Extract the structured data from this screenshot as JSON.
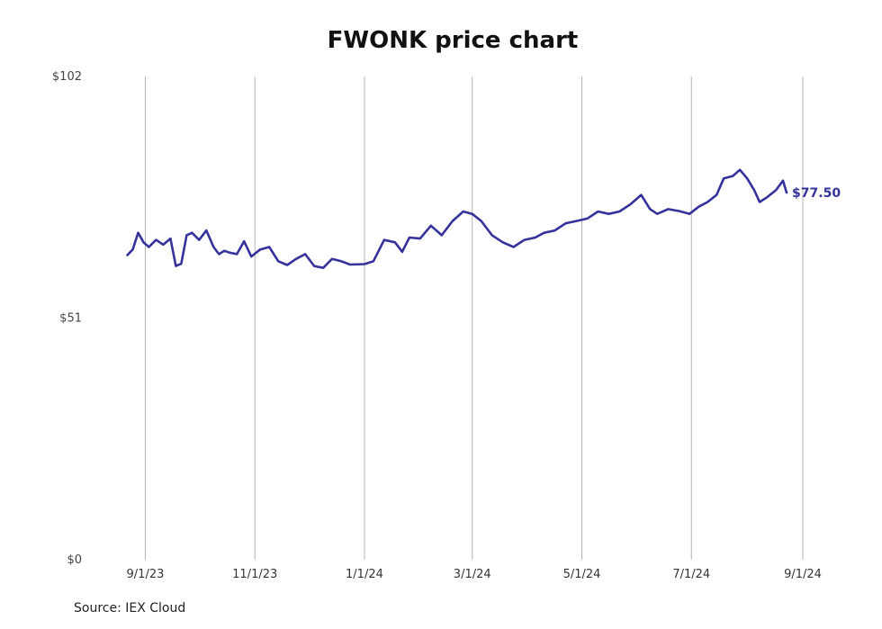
{
  "chart_data": {
    "type": "line",
    "title": "FWONK price chart",
    "source": "Source: IEX Cloud",
    "xlabel": "",
    "ylabel": "",
    "ylim": [
      0,
      102
    ],
    "yticks": [
      {
        "value": 0,
        "label": "$0"
      },
      {
        "value": 51,
        "label": "$51"
      },
      {
        "value": 102,
        "label": "$102"
      }
    ],
    "xlim": [
      "2023-08-19",
      "2024-09-01"
    ],
    "xticks": [
      {
        "date": "2023-09-01",
        "label": "9/1/23"
      },
      {
        "date": "2023-11-01",
        "label": "11/1/23"
      },
      {
        "date": "2024-01-01",
        "label": "1/1/24"
      },
      {
        "date": "2024-03-01",
        "label": "3/1/24"
      },
      {
        "date": "2024-05-01",
        "label": "5/1/24"
      },
      {
        "date": "2024-07-01",
        "label": "7/1/24"
      },
      {
        "date": "2024-09-01",
        "label": "9/1/24"
      }
    ],
    "grid": "vertical",
    "line_color": "#35329b",
    "last_label": "$77.50",
    "series": [
      {
        "x": [
          "2023-08-22",
          "2023-08-25",
          "2023-08-28",
          "2023-08-31",
          "2023-09-03",
          "2023-09-07",
          "2023-09-11",
          "2023-09-15",
          "2023-09-18",
          "2023-09-21",
          "2023-09-24",
          "2023-09-27",
          "2023-10-01",
          "2023-10-05",
          "2023-10-09",
          "2023-10-12",
          "2023-10-15",
          "2023-10-18",
          "2023-10-22",
          "2023-10-26",
          "2023-10-30",
          "2023-11-04",
          "2023-11-09",
          "2023-11-14",
          "2023-11-19",
          "2023-11-24",
          "2023-11-29",
          "2023-12-04",
          "2023-12-09",
          "2023-12-14",
          "2023-12-19",
          "2023-12-24",
          "2024-01-01",
          "2024-01-06",
          "2024-01-12",
          "2024-01-18",
          "2024-01-22",
          "2024-01-26",
          "2024-02-01",
          "2024-02-07",
          "2024-02-13",
          "2024-02-19",
          "2024-02-25",
          "2024-03-01",
          "2024-03-06",
          "2024-03-12",
          "2024-03-18",
          "2024-03-24",
          "2024-03-30",
          "2024-04-05",
          "2024-04-10",
          "2024-04-16",
          "2024-04-22",
          "2024-04-28",
          "2024-05-04",
          "2024-05-10",
          "2024-05-16",
          "2024-05-22",
          "2024-05-28",
          "2024-06-03",
          "2024-06-08",
          "2024-06-12",
          "2024-06-18",
          "2024-06-24",
          "2024-06-30",
          "2024-07-05",
          "2024-07-10",
          "2024-07-15",
          "2024-07-19",
          "2024-07-24",
          "2024-07-28",
          "2024-08-01",
          "2024-08-05",
          "2024-08-08",
          "2024-08-12",
          "2024-08-17",
          "2024-08-21",
          "2024-08-23"
        ],
        "y": [
          64.3,
          65.5,
          69.0,
          67.0,
          66.0,
          67.5,
          66.5,
          67.8,
          62.0,
          62.5,
          68.5,
          69.0,
          67.5,
          69.5,
          66.0,
          64.5,
          65.2,
          64.8,
          64.5,
          67.2,
          64.0,
          65.5,
          66.0,
          63.0,
          62.2,
          63.5,
          64.5,
          62.0,
          61.6,
          63.5,
          63.0,
          62.3,
          62.4,
          63.0,
          67.5,
          67.0,
          65.0,
          68.0,
          67.8,
          70.5,
          68.5,
          71.5,
          73.5,
          73.0,
          71.5,
          68.5,
          67.0,
          66.0,
          67.5,
          68.0,
          69.0,
          69.5,
          71.0,
          71.5,
          72.0,
          73.5,
          73.0,
          73.5,
          75.0,
          77.0,
          74.0,
          73.0,
          74.0,
          73.6,
          73.0,
          74.5,
          75.5,
          77.0,
          80.5,
          81.0,
          82.3,
          80.5,
          78.0,
          75.5,
          76.5,
          78.0,
          80.0,
          77.5
        ]
      }
    ]
  }
}
